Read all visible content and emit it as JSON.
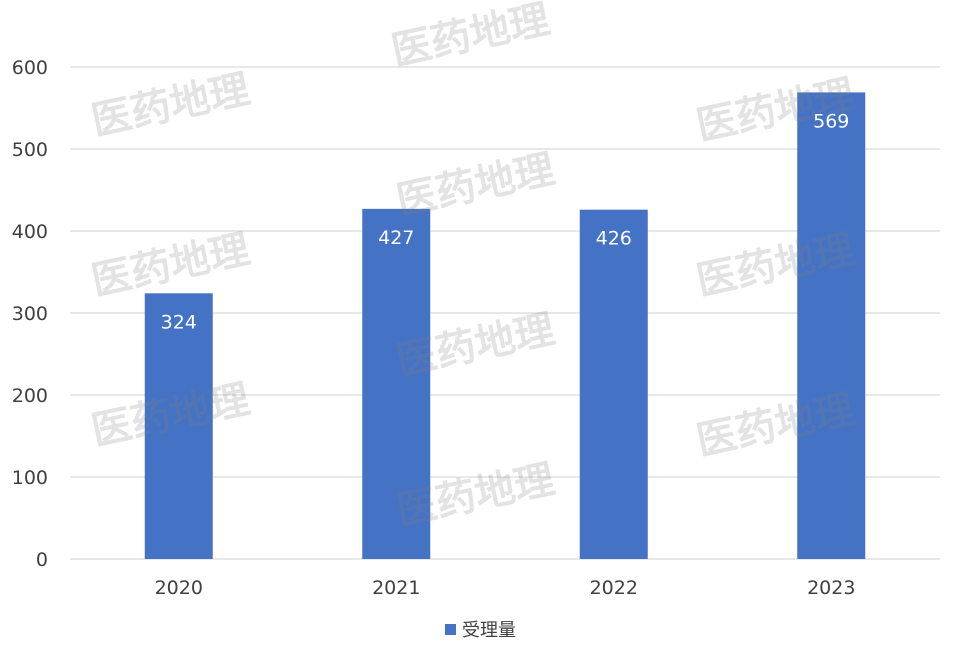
{
  "chart_data": {
    "type": "bar",
    "categories": [
      "2020",
      "2021",
      "2022",
      "2023"
    ],
    "series": [
      {
        "name": "受理量",
        "values": [
          324,
          427,
          426,
          569
        ]
      }
    ],
    "ylim": [
      0,
      600
    ],
    "y_ticks": [
      0,
      100,
      200,
      300,
      400,
      500,
      600
    ],
    "title": "",
    "xlabel": "",
    "ylabel": "",
    "grid": true,
    "legend": "bottom-center",
    "bar_color": "#4472C4",
    "grid_color": "#d9d9d9"
  },
  "watermark": {
    "text": "医药地理"
  }
}
